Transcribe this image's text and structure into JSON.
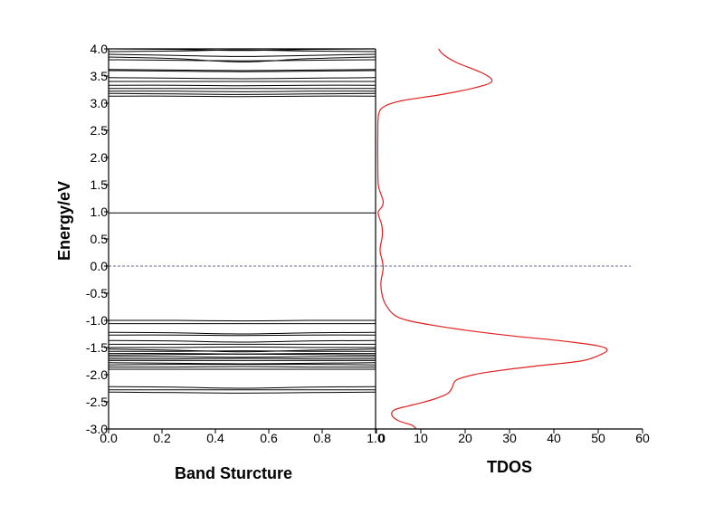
{
  "chart_data": [
    {
      "type": "line",
      "panel": "band structure",
      "xlabel": "Band Sturcture",
      "ylabel": "Energy/eV",
      "xlim": [
        0.0,
        1.0
      ],
      "ylim": [
        -3.0,
        4.0
      ],
      "xticks": [
        "0.0",
        "0.2",
        "0.4",
        "0.6",
        "0.8",
        "1.0"
      ],
      "yticks": [
        "-3.0",
        "-2.5",
        "-2.0",
        "-1.5",
        "-1.0",
        "-0.5",
        "0.0",
        "0.5",
        "1.0",
        "1.5",
        "2.0",
        "2.5",
        "3.0",
        "3.5",
        "4.0"
      ],
      "fermi_level": 0.0,
      "line_color": "#000000",
      "fermi_color": "#6a6a9a",
      "x": [
        0.0,
        0.25,
        0.5,
        0.75,
        1.0
      ],
      "series": [
        {
          "values": [
            4.0,
            3.99,
            3.97,
            3.99,
            4.0
          ]
        },
        {
          "values": [
            3.95,
            3.96,
            3.98,
            3.96,
            3.95
          ]
        },
        {
          "values": [
            3.9,
            3.88,
            3.86,
            3.88,
            3.9
          ]
        },
        {
          "values": [
            3.85,
            3.82,
            3.76,
            3.82,
            3.85
          ]
        },
        {
          "values": [
            3.8,
            3.79,
            3.78,
            3.79,
            3.8
          ]
        },
        {
          "values": [
            3.62,
            3.61,
            3.6,
            3.61,
            3.62
          ]
        },
        {
          "values": [
            3.6,
            3.59,
            3.58,
            3.59,
            3.6
          ]
        },
        {
          "values": [
            3.47,
            3.46,
            3.45,
            3.46,
            3.47
          ]
        },
        {
          "values": [
            3.4,
            3.4,
            3.4,
            3.4,
            3.4
          ]
        },
        {
          "values": [
            3.33,
            3.33,
            3.32,
            3.33,
            3.33
          ]
        },
        {
          "values": [
            3.27,
            3.27,
            3.27,
            3.27,
            3.27
          ]
        },
        {
          "values": [
            3.22,
            3.22,
            3.21,
            3.22,
            3.22
          ]
        },
        {
          "values": [
            3.18,
            3.17,
            3.16,
            3.17,
            3.18
          ]
        },
        {
          "values": [
            3.13,
            3.13,
            3.12,
            3.13,
            3.13
          ]
        },
        {
          "values": [
            0.98,
            0.98,
            0.98,
            0.98,
            0.98
          ]
        },
        {
          "values": [
            -1.0,
            -1.0,
            -1.01,
            -1.0,
            -1.0
          ]
        },
        {
          "values": [
            -1.06,
            -1.06,
            -1.06,
            -1.06,
            -1.06
          ]
        },
        {
          "values": [
            -1.22,
            -1.23,
            -1.25,
            -1.23,
            -1.22
          ]
        },
        {
          "values": [
            -1.27,
            -1.27,
            -1.28,
            -1.27,
            -1.27
          ]
        },
        {
          "values": [
            -1.37,
            -1.38,
            -1.4,
            -1.38,
            -1.37
          ]
        },
        {
          "values": [
            -1.44,
            -1.44,
            -1.44,
            -1.44,
            -1.44
          ]
        },
        {
          "values": [
            -1.5,
            -1.5,
            -1.49,
            -1.5,
            -1.5
          ]
        },
        {
          "values": [
            -1.53,
            -1.55,
            -1.58,
            -1.55,
            -1.53
          ]
        },
        {
          "values": [
            -1.57,
            -1.57,
            -1.56,
            -1.57,
            -1.57
          ]
        },
        {
          "values": [
            -1.61,
            -1.61,
            -1.62,
            -1.61,
            -1.61
          ]
        },
        {
          "values": [
            -1.64,
            -1.63,
            -1.62,
            -1.63,
            -1.64
          ]
        },
        {
          "values": [
            -1.67,
            -1.67,
            -1.68,
            -1.67,
            -1.67
          ]
        },
        {
          "values": [
            -1.71,
            -1.71,
            -1.7,
            -1.71,
            -1.71
          ]
        },
        {
          "values": [
            -1.74,
            -1.74,
            -1.74,
            -1.74,
            -1.74
          ]
        },
        {
          "values": [
            -1.78,
            -1.79,
            -1.8,
            -1.79,
            -1.78
          ]
        },
        {
          "values": [
            -1.82,
            -1.81,
            -1.81,
            -1.81,
            -1.82
          ]
        },
        {
          "values": [
            -1.86,
            -1.86,
            -1.85,
            -1.86,
            -1.86
          ]
        },
        {
          "values": [
            -1.9,
            -1.9,
            -1.9,
            -1.9,
            -1.9
          ]
        },
        {
          "values": [
            -2.22,
            -2.23,
            -2.25,
            -2.23,
            -2.22
          ]
        },
        {
          "values": [
            -2.28,
            -2.28,
            -2.28,
            -2.28,
            -2.28
          ]
        },
        {
          "values": [
            -2.32,
            -2.33,
            -2.34,
            -2.33,
            -2.32
          ]
        }
      ]
    },
    {
      "type": "line",
      "panel": "density of states",
      "xlabel": "TDOS",
      "xlim": [
        0,
        60
      ],
      "ylim": [
        -3.0,
        4.0
      ],
      "xticks": [
        "0",
        "10",
        "20",
        "30",
        "40",
        "50",
        "60"
      ],
      "line_color": "#e02020",
      "series": [
        {
          "x": [
            9,
            8,
            5,
            3.5,
            4,
            7,
            10,
            13,
            16,
            17,
            18,
            22,
            28,
            36,
            46,
            50,
            52,
            50,
            42,
            30,
            20,
            12,
            7,
            4,
            2,
            1.2,
            1,
            1.5,
            1.3,
            0.8,
            1.3,
            1.2,
            0.6,
            0.4,
            1.3,
            1.5,
            0.9,
            0.4,
            0.3,
            0.3,
            0.5,
            2,
            6,
            14,
            22,
            26,
            24,
            18,
            15,
            14
          ],
          "y": [
            -3.0,
            -2.93,
            -2.85,
            -2.75,
            -2.65,
            -2.58,
            -2.52,
            -2.45,
            -2.35,
            -2.25,
            -2.1,
            -2.0,
            -1.92,
            -1.84,
            -1.75,
            -1.65,
            -1.55,
            -1.47,
            -1.38,
            -1.28,
            -1.18,
            -1.08,
            -1.0,
            -0.9,
            -0.7,
            -0.5,
            -0.3,
            -0.05,
            0.1,
            0.3,
            0.55,
            0.75,
            0.9,
            1.0,
            1.1,
            1.2,
            1.35,
            1.5,
            1.9,
            2.4,
            2.8,
            2.95,
            3.05,
            3.15,
            3.28,
            3.4,
            3.55,
            3.75,
            3.9,
            4.0
          ]
        }
      ]
    }
  ]
}
